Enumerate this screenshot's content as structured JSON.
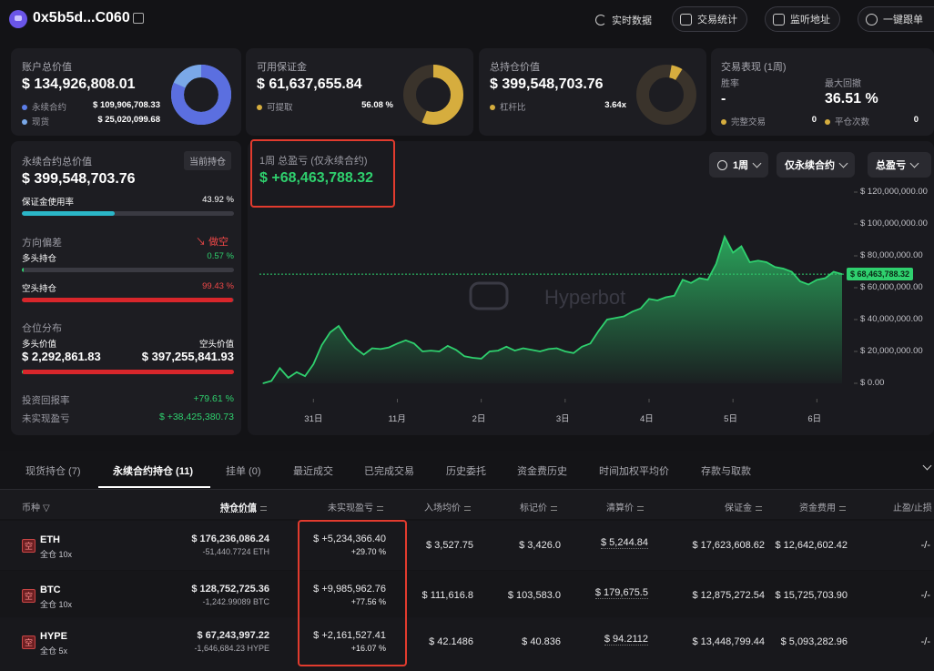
{
  "header": {
    "address": "0x5b5d...C060",
    "realtime_label": "实时数据",
    "trade_stats_label": "交易统计",
    "monitor_label": "监听地址",
    "copy_trade_label": "一键跟单"
  },
  "account_total": {
    "label": "账户总价值",
    "value": "$ 134,926,808.01",
    "perp_label": "永续合约",
    "perp_value": "$ 109,906,708.33",
    "spot_label": "现货",
    "spot_value": "$ 25,020,099.68",
    "perp_fraction": 0.8146
  },
  "margin": {
    "label": "可用保证金",
    "value": "$ 61,637,655.84",
    "withdraw_label": "可提取",
    "withdraw_pct": "56.08 %",
    "fraction": 0.5608
  },
  "position_value": {
    "label": "总持仓价值",
    "value": "$ 399,548,703.76",
    "leverage_label": "杠杆比",
    "leverage_value": "3.64x"
  },
  "performance": {
    "label": "交易表现 (1周)",
    "winrate_label": "胜率",
    "winrate_value": "-",
    "drawdown_label": "最大回撤",
    "drawdown_value": "36.51 %",
    "completed_label": "完整交易",
    "completed_value": "0",
    "closes_label": "平仓次数",
    "closes_value": "0"
  },
  "perp_panel": {
    "label": "永续合约总价值",
    "tag": "当前持仓",
    "value": "$ 399,548,703.76",
    "margin_usage_label": "保证金使用率",
    "margin_usage_pct": "43.92 %",
    "margin_usage_fraction": 0.4392,
    "bias_label": "方向偏差",
    "bias_value": "做空",
    "long_label": "多头持仓",
    "long_pct": "0.57 %",
    "long_fraction": 0.0057,
    "short_label": "空头持仓",
    "short_pct": "99.43 %",
    "short_fraction": 0.9943,
    "distribution_label": "仓位分布",
    "long_value_label": "多头价值",
    "short_value_label": "空头价值",
    "long_value": "$ 2,292,861.83",
    "short_value": "$ 397,255,841.93",
    "roi_label": "投资回报率",
    "roi_value": "+79.61 %",
    "unrealized_label": "未实现盈亏",
    "unrealized_value": "$ +38,425,380.73"
  },
  "chart_panel": {
    "title": "1周 总盈亏 (仅永续合约)",
    "value": "$ +68,463,788.32",
    "period": "1周",
    "scope": "仅永续合约",
    "metric": "总盈亏",
    "watermark": "Hyperbot",
    "current_label": "$ 68,463,788.32",
    "accent": "#2fd06e"
  },
  "chart_data": {
    "type": "area",
    "ylim": [
      0,
      120000000
    ],
    "y_ticks": [
      "$ 120,000,000.00",
      "$ 100,000,000.00",
      "$ 80,000,000.00",
      "$ 60,000,000.00",
      "$ 40,000,000.00",
      "$ 20,000,000.00",
      "$ 0.00"
    ],
    "x_ticks": [
      "31日",
      "11月",
      "2日",
      "3日",
      "4日",
      "5日",
      "6日"
    ],
    "x_tick_index": [
      6,
      16,
      26,
      36,
      46,
      56,
      66
    ],
    "values": [
      0,
      1500000,
      9500000,
      3500000,
      7000000,
      4500000,
      12000000,
      24000000,
      32000000,
      36000000,
      28000000,
      22000000,
      18000000,
      22000000,
      21500000,
      22500000,
      25000000,
      27000000,
      25000000,
      20000000,
      20500000,
      20000000,
      23500000,
      21000000,
      17000000,
      16000000,
      15500000,
      20000000,
      20500000,
      23000000,
      20500000,
      22000000,
      21000000,
      20000000,
      21500000,
      22000000,
      20000000,
      19000000,
      23000000,
      25000000,
      33000000,
      40000000,
      41000000,
      42000000,
      45000000,
      47000000,
      53000000,
      52000000,
      54000000,
      55000000,
      65000000,
      63000000,
      66000000,
      65000000,
      75000000,
      92000000,
      82000000,
      86000000,
      76000000,
      77000000,
      76000000,
      73000000,
      72000000,
      70000000,
      64000000,
      62000000,
      65000000,
      66000000,
      70000000,
      68500000
    ],
    "series": [
      {
        "name": "",
        "color": "#2fd06e"
      }
    ]
  },
  "tabs": [
    {
      "label": "现货持仓 (7)"
    },
    {
      "label": "永续合约持仓 (11)"
    },
    {
      "label": "挂单 (0)"
    },
    {
      "label": "最近成交"
    },
    {
      "label": "已完成交易"
    },
    {
      "label": "历史委托"
    },
    {
      "label": "资金费历史"
    },
    {
      "label": "时间加权平均价"
    },
    {
      "label": "存款与取款"
    }
  ],
  "columns": {
    "coin": "币种",
    "position_value": "持仓价值",
    "unrealized": "未实现盈亏",
    "entry": "入场均价",
    "mark": "标记价",
    "liq": "清算价",
    "margin": "保证金",
    "funding": "资金费用",
    "tpsl": "止盈/止损"
  },
  "rows": [
    {
      "side": "空",
      "coin": "ETH",
      "mode": "全仓 10x",
      "value": "$ 176,236,086.24",
      "size": "-51,440.7724 ETH",
      "pnl": "$ +5,234,366.40",
      "pnl_pct": "+29.70 %",
      "entry": "$ 3,527.75",
      "mark": "$ 3,426.0",
      "liq": "$ 5,244.84",
      "margin": "$ 17,623,608.62",
      "funding": "$ 12,642,602.42",
      "tpsl": "-/-"
    },
    {
      "side": "空",
      "coin": "BTC",
      "mode": "全仓 10x",
      "value": "$ 128,752,725.36",
      "size": "-1,242.99089 BTC",
      "pnl": "$ +9,985,962.76",
      "pnl_pct": "+77.56 %",
      "entry": "$ 111,616.8",
      "mark": "$ 103,583.0",
      "liq": "$ 179,675.5",
      "margin": "$ 12,875,272.54",
      "funding": "$ 15,725,703.90",
      "tpsl": "-/-"
    },
    {
      "side": "空",
      "coin": "HYPE",
      "mode": "全仓 5x",
      "value": "$ 67,243,997.22",
      "size": "-1,646,684.23 HYPE",
      "pnl": "$ +2,161,527.41",
      "pnl_pct": "+16.07 %",
      "entry": "$ 42.1486",
      "mark": "$ 40.836",
      "liq": "$ 94.2112",
      "margin": "$ 13,448,799.44",
      "funding": "$ 5,093,282.96",
      "tpsl": "-/-"
    }
  ]
}
